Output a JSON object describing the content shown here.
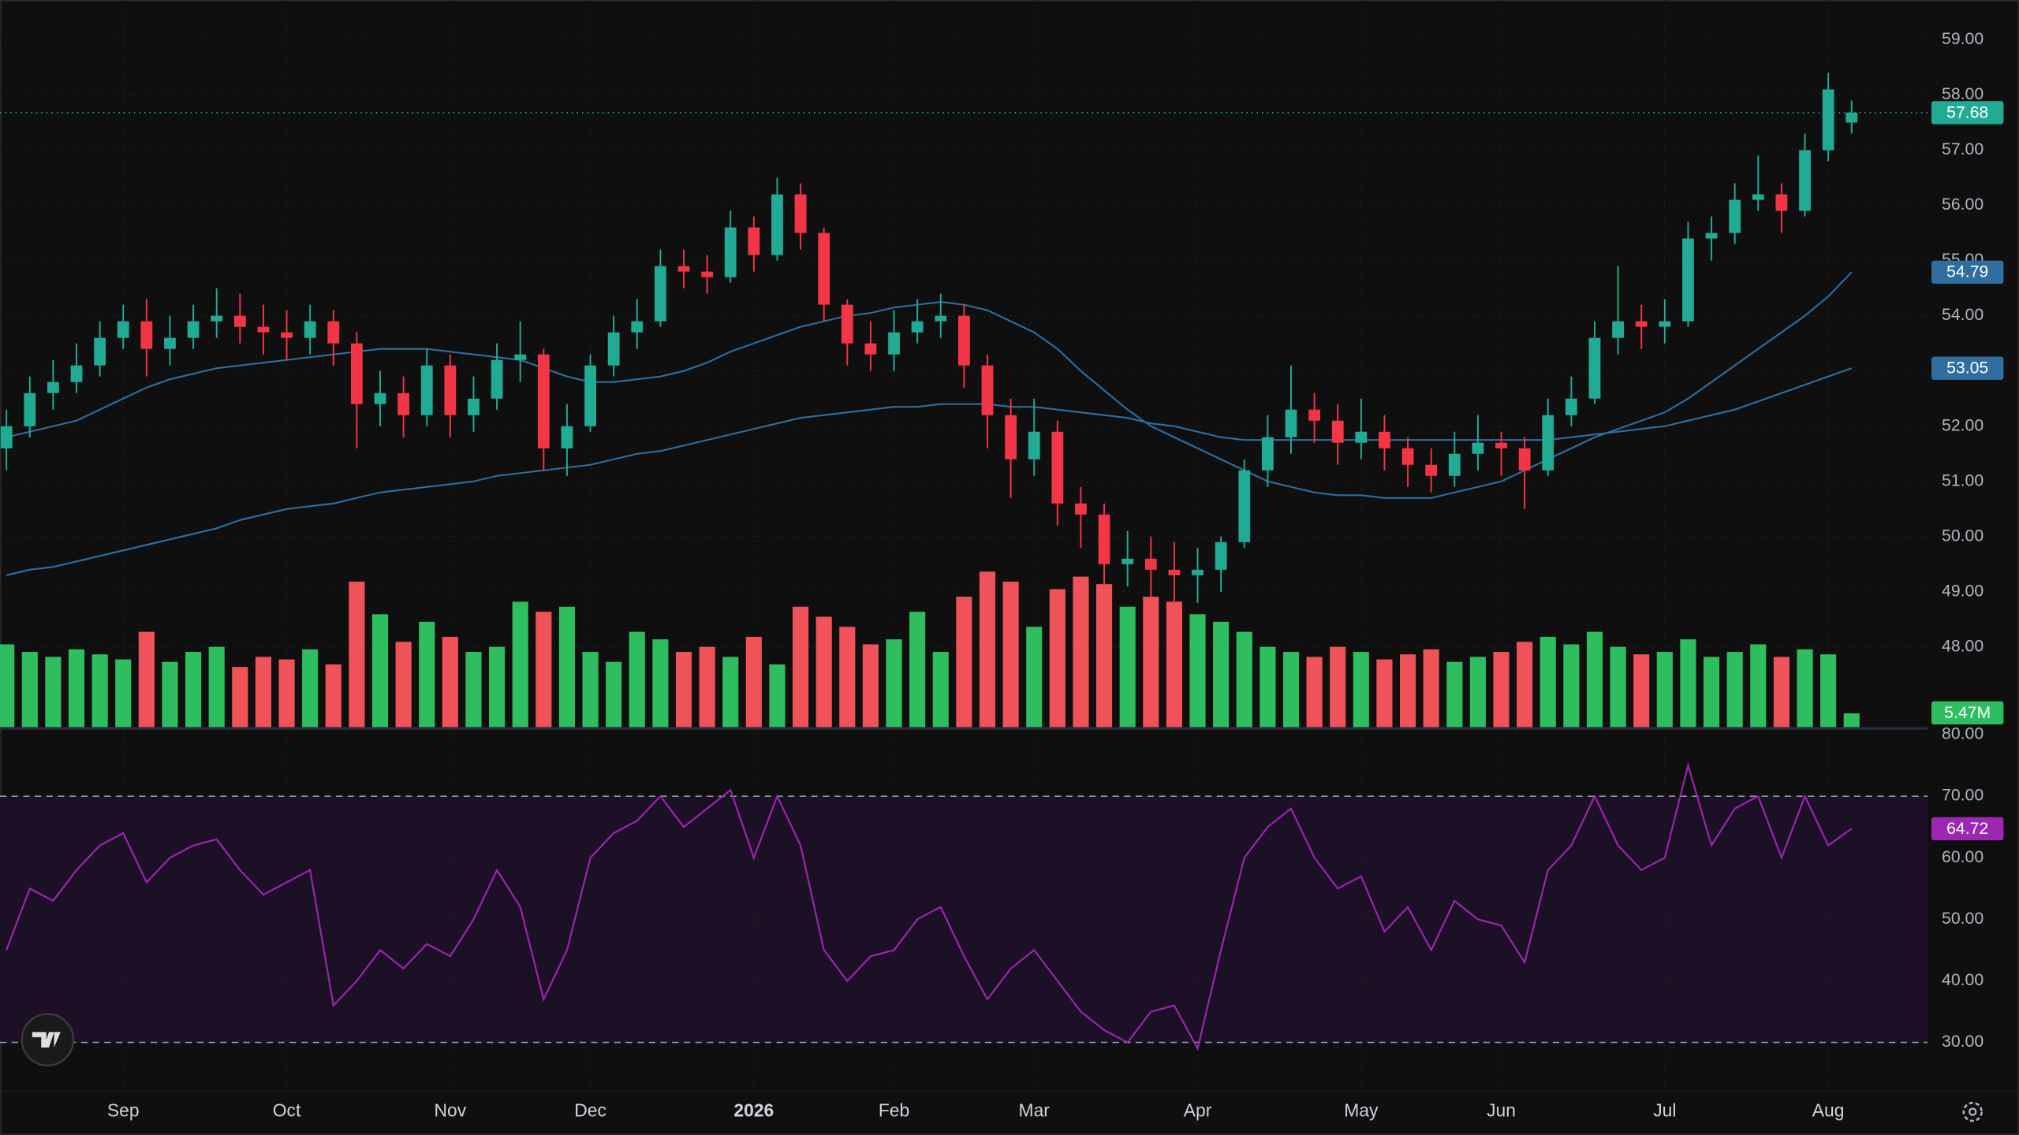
{
  "chart_data": {
    "type": "candlestick",
    "categories": [
      null,
      null,
      null,
      null,
      null,
      "Sep",
      null,
      null,
      null,
      null,
      null,
      null,
      "Oct",
      null,
      null,
      null,
      null,
      null,
      null,
      "Nov",
      null,
      null,
      null,
      null,
      null,
      "Dec",
      null,
      null,
      null,
      null,
      null,
      null,
      "2026",
      null,
      null,
      null,
      null,
      null,
      "Feb",
      null,
      null,
      null,
      null,
      null,
      "Mar",
      null,
      null,
      null,
      null,
      null,
      null,
      "Apr",
      null,
      null,
      null,
      null,
      null,
      null,
      "May",
      null,
      null,
      null,
      null,
      null,
      "Jun",
      null,
      null,
      null,
      null,
      null,
      null,
      "Jul",
      null,
      null,
      null,
      null,
      null,
      null,
      "Aug",
      null
    ],
    "open": [
      51.6,
      52.0,
      52.6,
      52.8,
      53.1,
      53.6,
      53.9,
      53.4,
      53.6,
      53.9,
      54.0,
      53.8,
      53.7,
      53.6,
      53.9,
      53.5,
      52.4,
      52.6,
      52.2,
      53.1,
      52.2,
      52.5,
      53.2,
      53.3,
      51.6,
      52.0,
      53.1,
      53.7,
      53.9,
      54.9,
      54.8,
      54.7,
      55.6,
      55.1,
      56.2,
      55.5,
      54.2,
      53.5,
      53.3,
      53.7,
      53.9,
      54.0,
      53.1,
      52.2,
      51.4,
      51.9,
      50.6,
      50.4,
      49.5,
      49.6,
      49.4,
      49.3,
      49.4,
      49.9,
      51.2,
      51.8,
      52.3,
      52.1,
      51.7,
      51.9,
      51.6,
      51.3,
      51.1,
      51.5,
      51.7,
      51.6,
      51.2,
      52.2,
      52.5,
      53.6,
      53.9,
      53.8,
      53.9,
      55.4,
      55.5,
      56.1,
      56.2,
      55.9,
      57.0,
      57.5
    ],
    "high": [
      52.3,
      52.9,
      53.2,
      53.5,
      53.9,
      54.2,
      54.3,
      54.0,
      54.2,
      54.5,
      54.4,
      54.2,
      54.1,
      54.2,
      54.1,
      53.7,
      53.0,
      52.9,
      53.4,
      53.3,
      52.9,
      53.5,
      53.9,
      53.4,
      52.4,
      53.3,
      54.0,
      54.3,
      55.2,
      55.2,
      55.1,
      55.9,
      55.8,
      56.5,
      56.4,
      55.6,
      54.3,
      53.9,
      54.1,
      54.3,
      54.4,
      54.2,
      53.3,
      52.5,
      52.5,
      52.1,
      50.9,
      50.6,
      50.1,
      50.0,
      49.9,
      49.8,
      50.0,
      51.4,
      52.2,
      53.1,
      52.6,
      52.4,
      52.5,
      52.2,
      51.8,
      51.6,
      51.9,
      52.2,
      51.9,
      51.8,
      52.5,
      52.9,
      53.9,
      54.9,
      54.2,
      54.3,
      55.7,
      55.8,
      56.4,
      56.9,
      56.4,
      57.3,
      58.4,
      57.9
    ],
    "low": [
      51.2,
      51.8,
      52.3,
      52.6,
      52.9,
      53.4,
      52.9,
      53.1,
      53.4,
      53.6,
      53.5,
      53.3,
      53.2,
      53.3,
      53.1,
      51.6,
      52.0,
      51.8,
      52.0,
      51.8,
      51.9,
      52.3,
      52.8,
      51.2,
      51.1,
      51.9,
      52.9,
      53.4,
      53.8,
      54.5,
      54.4,
      54.6,
      54.8,
      55.0,
      55.2,
      53.9,
      53.1,
      53.0,
      53.0,
      53.5,
      53.6,
      52.7,
      51.6,
      50.7,
      51.1,
      50.2,
      49.8,
      49.1,
      49.1,
      48.9,
      48.8,
      48.8,
      49.0,
      49.8,
      50.9,
      51.5,
      51.7,
      51.3,
      51.4,
      51.2,
      50.9,
      50.8,
      50.9,
      51.2,
      51.1,
      50.5,
      51.1,
      52.0,
      52.4,
      53.3,
      53.4,
      53.5,
      53.8,
      55.0,
      55.3,
      55.9,
      55.5,
      55.8,
      56.8,
      57.3
    ],
    "close": [
      52.0,
      52.6,
      52.8,
      53.1,
      53.6,
      53.9,
      53.4,
      53.6,
      53.9,
      54.0,
      53.8,
      53.7,
      53.6,
      53.9,
      53.5,
      52.4,
      52.6,
      52.2,
      53.1,
      52.2,
      52.5,
      53.2,
      53.3,
      51.6,
      52.0,
      53.1,
      53.7,
      53.9,
      54.9,
      54.8,
      54.7,
      55.6,
      55.1,
      56.2,
      55.5,
      54.2,
      53.5,
      53.3,
      53.7,
      53.9,
      54.0,
      53.1,
      52.2,
      51.4,
      51.9,
      50.6,
      50.4,
      49.5,
      49.6,
      49.4,
      49.3,
      49.4,
      49.9,
      51.2,
      51.8,
      52.3,
      52.1,
      51.7,
      51.9,
      51.6,
      51.3,
      51.1,
      51.5,
      51.7,
      51.6,
      51.2,
      52.2,
      52.5,
      53.6,
      53.9,
      53.8,
      53.9,
      55.4,
      55.5,
      56.1,
      56.2,
      55.9,
      57.0,
      58.1,
      57.68
    ],
    "up_color": "#22ab94",
    "down_color": "#f23645",
    "ylim": [
      46.55,
      59.72
    ],
    "yticks": [
      {
        "value": 48,
        "label": "48.00"
      },
      {
        "value": 49,
        "label": "49.00"
      },
      {
        "value": 50,
        "label": "50.00"
      },
      {
        "value": 51,
        "label": "51.00"
      },
      {
        "value": 52,
        "label": "52.00"
      },
      {
        "value": 53,
        "label": "53.00"
      },
      {
        "value": 54,
        "label": "54.00"
      },
      {
        "value": 55,
        "label": "55.00"
      },
      {
        "value": 56,
        "label": "56.00"
      },
      {
        "value": 57,
        "label": "57.00"
      },
      {
        "value": 58,
        "label": "58.00"
      },
      {
        "value": 59,
        "label": "59.00"
      }
    ],
    "grid": true,
    "lines": [
      {
        "color": "#2f6e9e",
        "values": [
          51.8,
          51.9,
          52.0,
          52.1,
          52.3,
          52.5,
          52.7,
          52.85,
          52.95,
          53.05,
          53.1,
          53.15,
          53.2,
          53.25,
          53.3,
          53.35,
          53.4,
          53.4,
          53.4,
          53.35,
          53.3,
          53.25,
          53.2,
          53.05,
          52.9,
          52.8,
          52.8,
          52.85,
          52.9,
          53.0,
          53.15,
          53.35,
          53.5,
          53.65,
          53.8,
          53.9,
          54.0,
          54.05,
          54.15,
          54.2,
          54.25,
          54.2,
          54.1,
          53.9,
          53.7,
          53.4,
          53.0,
          52.65,
          52.3,
          52.0,
          51.8,
          51.6,
          51.4,
          51.2,
          51.0,
          50.9,
          50.8,
          50.75,
          50.75,
          50.7,
          50.7,
          50.7,
          50.8,
          50.9,
          51.0,
          51.2,
          51.4,
          51.6,
          51.8,
          51.95,
          52.1,
          52.25,
          52.5,
          52.8,
          53.1,
          53.4,
          53.7,
          54.0,
          54.35,
          54.79
        ]
      },
      {
        "color": "#2f6e9e",
        "values": [
          49.3,
          49.4,
          49.45,
          49.55,
          49.65,
          49.75,
          49.85,
          49.95,
          50.05,
          50.15,
          50.3,
          50.4,
          50.5,
          50.55,
          50.6,
          50.7,
          50.8,
          50.85,
          50.9,
          50.95,
          51.0,
          51.1,
          51.15,
          51.2,
          51.25,
          51.3,
          51.4,
          51.5,
          51.55,
          51.65,
          51.75,
          51.85,
          51.95,
          52.05,
          52.15,
          52.2,
          52.25,
          52.3,
          52.35,
          52.35,
          52.4,
          52.4,
          52.4,
          52.35,
          52.35,
          52.3,
          52.25,
          52.2,
          52.15,
          52.05,
          52.0,
          51.9,
          51.8,
          51.75,
          51.75,
          51.75,
          51.75,
          51.75,
          51.75,
          51.75,
          51.75,
          51.75,
          51.75,
          51.75,
          51.75,
          51.75,
          51.75,
          51.8,
          51.85,
          51.9,
          51.95,
          52.0,
          52.1,
          52.2,
          52.3,
          52.45,
          52.6,
          52.75,
          52.9,
          53.05
        ]
      }
    ],
    "volume": {
      "values": [
        33,
        30,
        28,
        31,
        29,
        27,
        38,
        26,
        30,
        32,
        24,
        28,
        27,
        31,
        25,
        58,
        45,
        34,
        42,
        36,
        30,
        32,
        50,
        46,
        48,
        30,
        26,
        38,
        35,
        30,
        32,
        28,
        36,
        25,
        48,
        44,
        40,
        33,
        35,
        46,
        30,
        52,
        62,
        58,
        40,
        55,
        60,
        57,
        48,
        52,
        50,
        45,
        42,
        38,
        32,
        30,
        28,
        32,
        30,
        27,
        29,
        31,
        26,
        28,
        30,
        34,
        36,
        33,
        38,
        32,
        29,
        30,
        35,
        28,
        30,
        33,
        28,
        31,
        29,
        5.47
      ],
      "value_labels": [
        null,
        null,
        null,
        null,
        null,
        null,
        null,
        null,
        null,
        null,
        null,
        null,
        null,
        null,
        null,
        null,
        null,
        null,
        null,
        null,
        null,
        null,
        null,
        null,
        null,
        null,
        null,
        null,
        null,
        null,
        null,
        null,
        null,
        null,
        null,
        null,
        null,
        null,
        null,
        null,
        null,
        null,
        null,
        null,
        null,
        null,
        null,
        null,
        null,
        null,
        null,
        null,
        null,
        null,
        null,
        null,
        null,
        null,
        null,
        null,
        null,
        null,
        null,
        null,
        null,
        null,
        null,
        null,
        null,
        null,
        null,
        null,
        null,
        null,
        null,
        null,
        null,
        null,
        null,
        "5.47M"
      ],
      "ylim": [
        0,
        290
      ],
      "up_color": "#2ebd5f",
      "down_color": "#f0525a"
    },
    "rsi": {
      "values": [
        45,
        55,
        53,
        58,
        62,
        64,
        56,
        60,
        62,
        63,
        58,
        54,
        56,
        58,
        36,
        40,
        45,
        42,
        46,
        44,
        50,
        58,
        52,
        37,
        45,
        60,
        64,
        66,
        70,
        65,
        68,
        71,
        60,
        70,
        62,
        45,
        40,
        44,
        45,
        50,
        52,
        44,
        37,
        42,
        45,
        40,
        35,
        32,
        30,
        35,
        36,
        29,
        45,
        60,
        65,
        68,
        60,
        55,
        57,
        48,
        52,
        45,
        53,
        50,
        49,
        43,
        58,
        62,
        70,
        62,
        58,
        60,
        75,
        62,
        68,
        70,
        60,
        70,
        62,
        64.72
      ],
      "ylim": [
        22.7,
        80.6
      ],
      "yticks": [
        {
          "value": 30,
          "label": "30.00"
        },
        {
          "value": 40,
          "label": "40.00"
        },
        {
          "value": 50,
          "label": "50.00"
        },
        {
          "value": 60,
          "label": "60.00"
        },
        {
          "value": 70,
          "label": "70.00"
        },
        {
          "value": 80,
          "label": "80.00"
        }
      ],
      "band": [
        30,
        70
      ],
      "color": "#9c27b0",
      "band_color": "#1c1027"
    }
  }
}
